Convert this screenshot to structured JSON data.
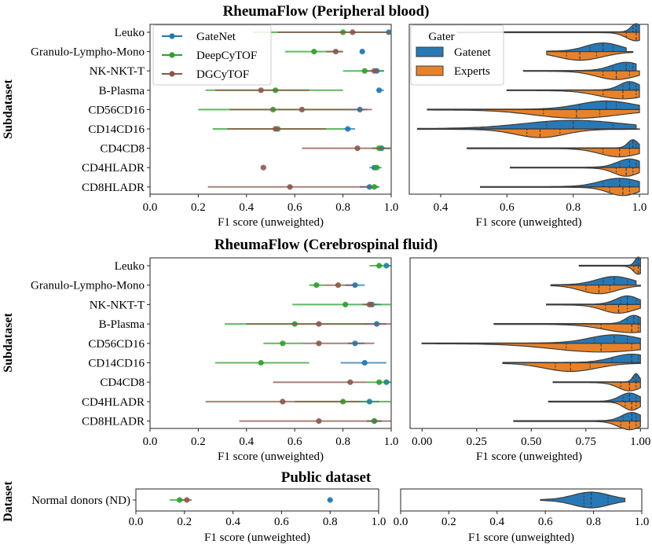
{
  "figure": {
    "titles": [
      "RheumaFlow (Peripheral blood)",
      "RheumaFlow (Cerebrospinal fluid)",
      "Public dataset"
    ],
    "ylabels": [
      "Subdataset",
      "Subdataset",
      "Dataset"
    ]
  },
  "colors": {
    "GateNet": "#1f77b4",
    "DeepCyTOF": "#2ca02c",
    "DGCyTOF": "#8c564b",
    "Gatenet_violin": "#2878b5",
    "Experts_violin": "#e8822a",
    "violin_edge": "#3c3c3c"
  },
  "chart_data": [
    {
      "type": "point-errorbar",
      "section": 0,
      "side": "left",
      "title": "RheumaFlow (Peripheral blood)",
      "ylabel": "Subdataset",
      "xlabel": "F1 score (unweighted)",
      "xlim": [
        0,
        1
      ],
      "xticks": [
        "0.0",
        "0.2",
        "0.4",
        "0.6",
        "0.8",
        "1.0"
      ],
      "categories": [
        "Leuko",
        "Granulo-Lympho-Mono",
        "NK-NKT-T",
        "B-Plasma",
        "CD56CD16",
        "CD14CD16",
        "CD4CD8",
        "CD4HLADR",
        "CD8HLADR"
      ],
      "legend": {
        "position": "upper-left",
        "entries": [
          "GateNet",
          "DeepCyTOF",
          "DGCyTOF"
        ]
      },
      "series": [
        {
          "name": "GateNet",
          "mean": [
            0.99,
            0.88,
            0.94,
            0.95,
            0.87,
            0.82,
            0.96,
            0.93,
            0.91
          ],
          "ci_low": [
            0.98,
            0.87,
            0.92,
            0.94,
            0.83,
            0.8,
            0.93,
            0.91,
            0.87
          ],
          "ci_high": [
            1.0,
            0.89,
            0.97,
            0.97,
            0.9,
            0.85,
            1.0,
            0.96,
            0.95
          ]
        },
        {
          "name": "DeepCyTOF",
          "mean": [
            0.8,
            0.68,
            0.89,
            0.52,
            0.51,
            0.53,
            0.95,
            0.94,
            0.93
          ],
          "ci_low": [
            0.43,
            0.56,
            0.8,
            0.23,
            0.2,
            0.26,
            0.92,
            0.92,
            0.91
          ],
          "ci_high": [
            1.0,
            0.8,
            0.97,
            0.8,
            0.83,
            0.8,
            0.99,
            0.95,
            0.95
          ]
        },
        {
          "name": "DGCyTOF",
          "mean": [
            0.84,
            0.77,
            0.93,
            0.46,
            0.63,
            0.52,
            0.86,
            0.47,
            0.58
          ],
          "ci_low": [
            0.53,
            0.73,
            0.9,
            0.27,
            0.33,
            0.32,
            0.63,
            0.47,
            0.24
          ],
          "ci_high": [
            1.0,
            0.8,
            0.95,
            0.66,
            0.92,
            0.73,
            1.0,
            0.47,
            0.92
          ]
        }
      ]
    },
    {
      "type": "violin",
      "section": 0,
      "side": "right",
      "split": true,
      "xlabel": "F1 score (unweighted)",
      "xlim": [
        0.305,
        1.026
      ],
      "xticks": [
        "0.4",
        "0.6",
        "0.8",
        "1.0"
      ],
      "legend": {
        "position": "upper-left",
        "title": "Gater",
        "entries": [
          "Gatenet",
          "Experts"
        ]
      },
      "series": [
        {
          "name": "Gatenet",
          "stats": [
            [
              0.52,
              0.98,
              0.99,
              1.0,
              1.0
            ],
            [
              0.72,
              0.85,
              0.89,
              0.92,
              0.96
            ],
            [
              0.65,
              0.92,
              0.96,
              0.98,
              0.99
            ],
            [
              0.6,
              0.95,
              0.97,
              0.99,
              1.0
            ],
            [
              0.36,
              0.82,
              0.9,
              0.93,
              1.0
            ],
            [
              0.33,
              0.72,
              0.8,
              0.92,
              0.99
            ],
            [
              0.48,
              0.97,
              0.98,
              0.99,
              1.0
            ],
            [
              0.61,
              0.94,
              0.97,
              0.99,
              1.0
            ],
            [
              0.52,
              0.89,
              0.94,
              0.97,
              1.0
            ]
          ]
        },
        {
          "name": "Experts",
          "stats": [
            [
              0.45,
              0.96,
              0.99,
              1.0,
              1.0
            ],
            [
              0.72,
              0.78,
              0.82,
              0.87,
              0.98
            ],
            [
              0.65,
              0.89,
              0.93,
              0.97,
              1.0
            ],
            [
              0.6,
              0.89,
              0.95,
              0.99,
              1.0
            ],
            [
              0.36,
              0.71,
              0.81,
              0.88,
              1.0
            ],
            [
              0.33,
              0.66,
              0.7,
              0.76,
              1.0
            ],
            [
              0.48,
              0.89,
              0.94,
              0.97,
              1.0
            ],
            [
              0.61,
              0.93,
              0.96,
              0.98,
              1.0
            ],
            [
              0.52,
              0.91,
              0.95,
              0.97,
              1.0
            ]
          ]
        }
      ],
      "stats_fields": [
        "min",
        "q1",
        "median",
        "q3",
        "max"
      ]
    },
    {
      "type": "point-errorbar",
      "section": 1,
      "side": "left",
      "title": "RheumaFlow (Cerebrospinal fluid)",
      "ylabel": "Subdataset",
      "xlabel": "F1 score (unweighted)",
      "xlim": [
        0,
        1
      ],
      "xticks": [
        "0.0",
        "0.2",
        "0.4",
        "0.6",
        "0.8",
        "1.0"
      ],
      "categories": [
        "Leuko",
        "Granulo-Lympho-Mono",
        "NK-NKT-T",
        "B-Plasma",
        "CD56CD16",
        "CD14CD16",
        "CD4CD8",
        "CD4HLADR",
        "CD8HLADR"
      ],
      "series": [
        {
          "name": "GateNet",
          "mean": [
            0.98,
            0.85,
            0.92,
            0.94,
            0.85,
            0.89,
            0.98,
            0.91,
            0.93
          ],
          "ci_low": [
            0.97,
            0.81,
            0.89,
            0.89,
            0.82,
            0.79,
            0.97,
            0.87,
            0.9
          ],
          "ci_high": [
            1.0,
            0.89,
            0.96,
            0.98,
            0.89,
            0.98,
            1.0,
            0.95,
            0.96
          ]
        },
        {
          "name": "DeepCyTOF",
          "mean": [
            0.95,
            0.69,
            0.81,
            0.6,
            0.55,
            0.46,
            0.95,
            0.8,
            0.93
          ],
          "ci_low": [
            0.91,
            0.66,
            0.59,
            0.31,
            0.47,
            0.27,
            0.9,
            0.6,
            0.9
          ],
          "ci_high": [
            1.0,
            0.72,
            1.0,
            0.9,
            0.63,
            0.66,
            1.0,
            1.0,
            0.96
          ]
        },
        {
          "name": "DGCyTOF",
          "mean": [
            null,
            0.78,
            0.91,
            0.7,
            0.7,
            null,
            0.83,
            0.55,
            0.7
          ],
          "ci_low": [
            null,
            0.72,
            0.88,
            0.4,
            0.63,
            null,
            0.51,
            0.23,
            0.37
          ],
          "ci_high": [
            null,
            0.85,
            0.94,
            1.0,
            0.93,
            null,
            0.9,
            0.87,
            1.0
          ]
        }
      ]
    },
    {
      "type": "violin",
      "section": 1,
      "side": "right",
      "split": true,
      "xlabel": "F1 score (unweighted)",
      "xlim": [
        -0.055,
        1.035
      ],
      "xticks": [
        "0.00",
        "0.25",
        "0.50",
        "0.75",
        "1.00"
      ],
      "series": [
        {
          "name": "Gatenet",
          "stats": [
            [
              0.72,
              0.98,
              0.99,
              1.0,
              1.0
            ],
            [
              0.59,
              0.83,
              0.88,
              0.94,
              0.98
            ],
            [
              0.57,
              0.91,
              0.94,
              0.98,
              1.0
            ],
            [
              0.33,
              0.94,
              0.97,
              0.99,
              1.0
            ],
            [
              0.0,
              0.79,
              0.88,
              0.94,
              1.0
            ],
            [
              0.37,
              0.87,
              0.96,
              0.99,
              1.0
            ],
            [
              0.6,
              0.97,
              0.98,
              0.99,
              1.0
            ],
            [
              0.58,
              0.92,
              0.95,
              0.98,
              1.0
            ],
            [
              0.42,
              0.92,
              0.96,
              0.98,
              1.0
            ]
          ]
        },
        {
          "name": "Experts",
          "stats": [
            [
              0.72,
              0.97,
              0.99,
              1.0,
              1.0
            ],
            [
              0.59,
              0.75,
              0.81,
              0.86,
              1.0
            ],
            [
              0.57,
              0.84,
              0.9,
              0.94,
              1.0
            ],
            [
              0.33,
              0.82,
              0.96,
              0.99,
              1.0
            ],
            [
              0.0,
              0.66,
              0.82,
              0.96,
              1.0
            ],
            [
              0.37,
              0.61,
              0.68,
              0.77,
              1.0
            ],
            [
              0.6,
              0.91,
              0.95,
              0.98,
              1.0
            ],
            [
              0.58,
              0.93,
              0.96,
              0.98,
              1.0
            ],
            [
              0.42,
              0.91,
              0.95,
              0.98,
              1.0
            ]
          ]
        }
      ],
      "stats_fields": [
        "min",
        "q1",
        "median",
        "q3",
        "max"
      ]
    },
    {
      "type": "point-errorbar",
      "section": 2,
      "side": "left",
      "title": "Public dataset",
      "ylabel": "Dataset",
      "xlabel": "F1 score (unweighted)",
      "xlim": [
        0,
        1
      ],
      "xticks": [
        "0.0",
        "0.2",
        "0.4",
        "0.6",
        "0.8",
        "1.0"
      ],
      "categories": [
        "Normal donors (ND)"
      ],
      "series": [
        {
          "name": "GateNet",
          "mean": [
            0.8
          ],
          "ci_low": [
            0.79
          ],
          "ci_high": [
            0.81
          ]
        },
        {
          "name": "DeepCyTOF",
          "mean": [
            0.18
          ],
          "ci_low": [
            0.14
          ],
          "ci_high": [
            0.22
          ]
        },
        {
          "name": "DGCyTOF",
          "mean": [
            0.21
          ],
          "ci_low": [
            0.19
          ],
          "ci_high": [
            0.23
          ]
        }
      ]
    },
    {
      "type": "violin",
      "section": 2,
      "side": "right",
      "split": false,
      "xlabel": "F1 score (unweighted)",
      "xlim": [
        0,
        1
      ],
      "xticks": [
        "0.0",
        "0.2",
        "0.4",
        "0.6",
        "0.8",
        "1.0"
      ],
      "series": [
        {
          "name": "Gatenet",
          "stats": [
            [
              0.58,
              0.76,
              0.79,
              0.86,
              0.93
            ]
          ]
        }
      ],
      "stats_fields": [
        "min",
        "q1",
        "median",
        "q3",
        "max"
      ]
    }
  ]
}
